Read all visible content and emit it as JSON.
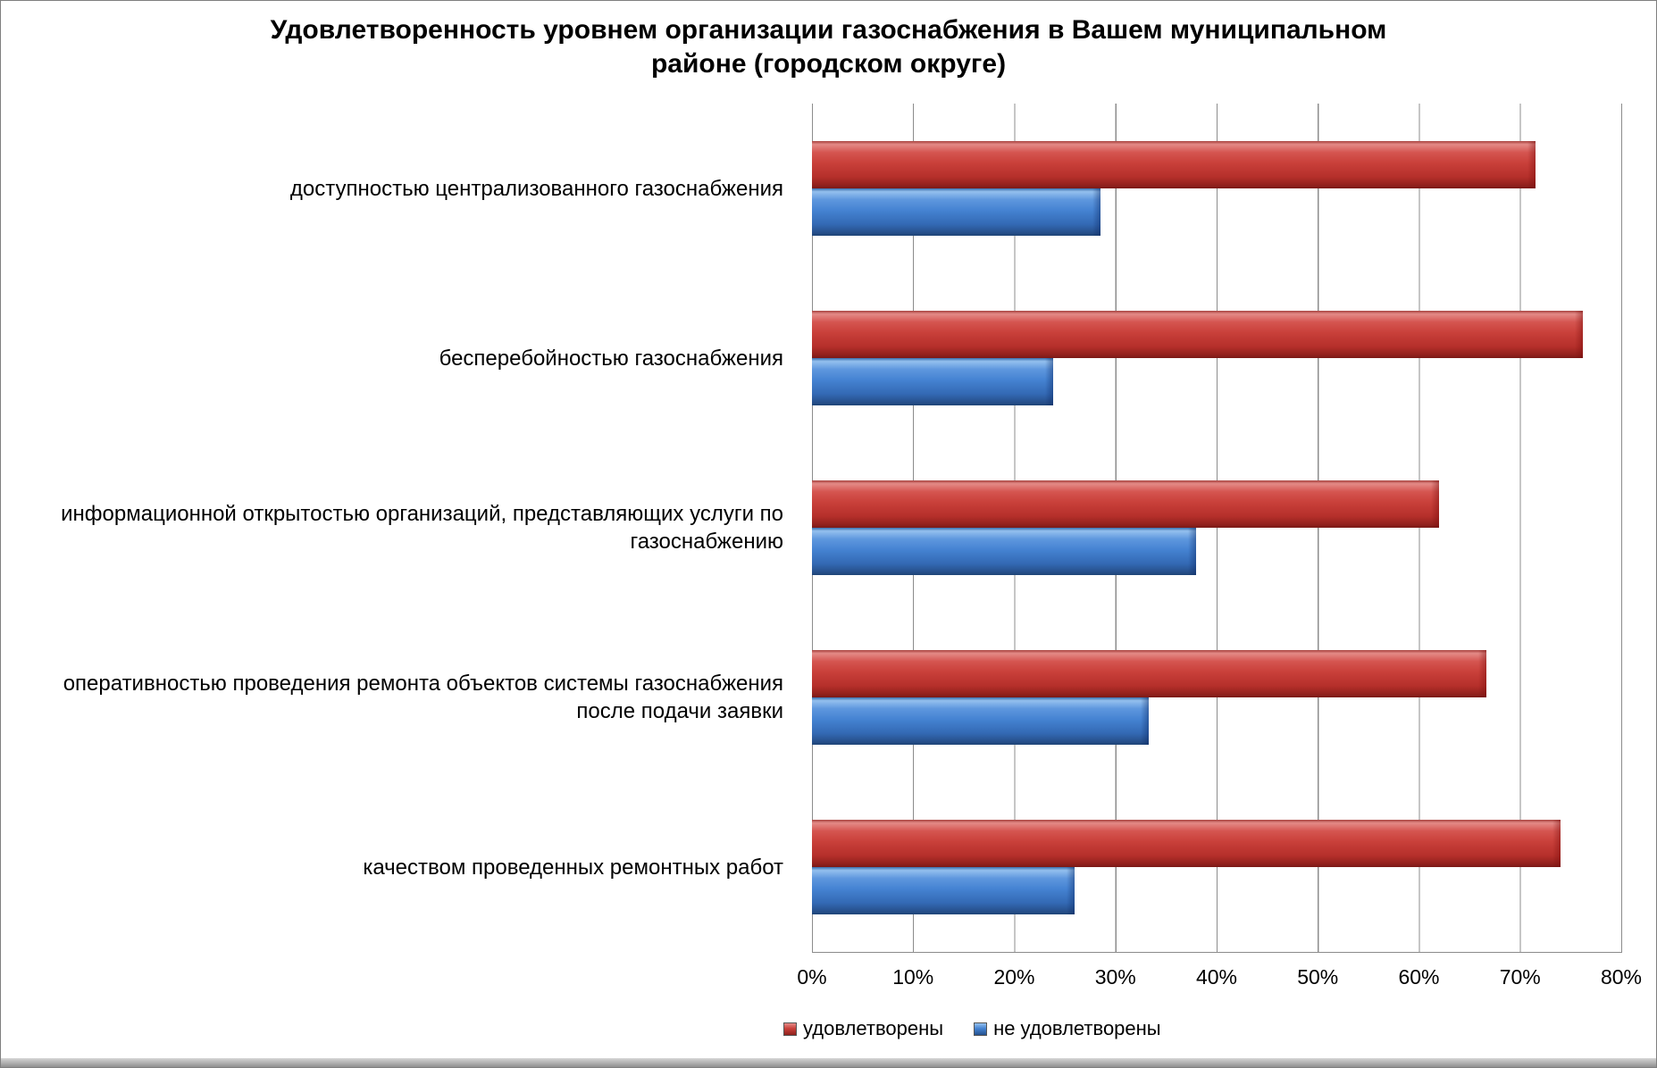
{
  "title": {
    "line1": "Удовлетворенность уровнем организации газоснабжения в Вашем муниципальном",
    "line2": "районе (городском округе)"
  },
  "chart_data": {
    "type": "bar",
    "orientation": "horizontal",
    "title": "Удовлетворенность уровнем организации газоснабжения в Вашем муниципальном районе (городском округе)",
    "categories": [
      "доступностью централизованного газоснабжения",
      "бесперебойностью  газоснабжения",
      "информационной открытостью организаций, представляющих услуги по газоснабжению",
      "оперативностью проведения ремонта объектов системы газоснабжения после подачи заявки",
      "качеством проведенных ремонтных работ"
    ],
    "series": [
      {
        "name": "удовлетворены",
        "color": "#c9403a",
        "values": [
          71.5,
          76.2,
          62.0,
          66.7,
          74.0
        ]
      },
      {
        "name": "не удовлетворены",
        "color": "#4583d2",
        "values": [
          28.5,
          23.8,
          38.0,
          33.3,
          26.0
        ]
      }
    ],
    "x_ticks": [
      "0%",
      "10%",
      "20%",
      "30%",
      "40%",
      "50%",
      "60%",
      "70%",
      "80%"
    ],
    "xlim": [
      0,
      80
    ],
    "xlabel": "",
    "ylabel": "",
    "grid": "vertical",
    "legend_position": "bottom"
  }
}
